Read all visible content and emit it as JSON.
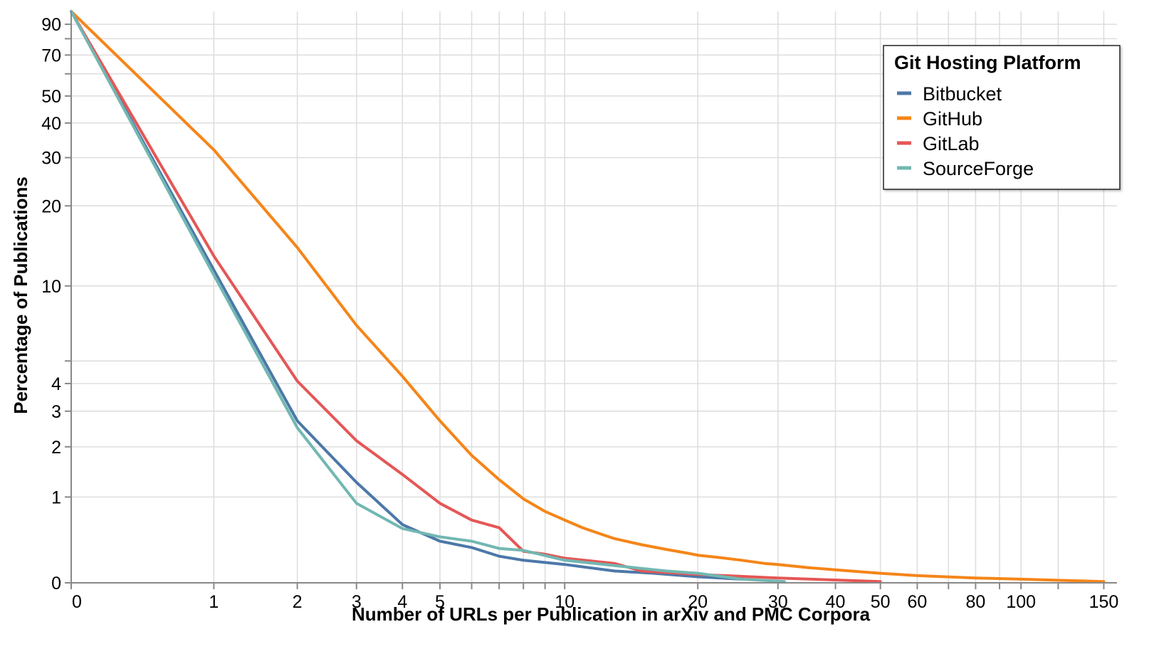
{
  "chart_data": {
    "type": "line",
    "title": "",
    "xlabel": "Number of URLs per Publication in arXiv and PMC Corpora",
    "ylabel": "Percentage of Publications",
    "xscale": "symlog",
    "yscale": "symlog",
    "xlim": [
      0,
      160
    ],
    "ylim": [
      0,
      100
    ],
    "grid": true,
    "x_ticks": [
      0,
      1,
      2,
      3,
      4,
      5,
      10,
      20,
      30,
      40,
      50,
      60,
      80,
      100,
      150
    ],
    "x_minor_ticks": [
      6,
      7,
      8,
      9,
      70,
      90,
      120
    ],
    "y_ticks": [
      0,
      1,
      2,
      3,
      4,
      10,
      20,
      30,
      40,
      50,
      70,
      90
    ],
    "y_minor_ticks": [
      5,
      60,
      80
    ],
    "legend": {
      "title": "Git Hosting Platform",
      "position": "top-right"
    },
    "series": [
      {
        "name": "Bitbucket",
        "color": "#4c78a8",
        "x": [
          0,
          1,
          2,
          3,
          4,
          5,
          6,
          7,
          8,
          10,
          13,
          16,
          20,
          25
        ],
        "y": [
          100,
          11.5,
          2.7,
          1.25,
          0.6,
          0.4,
          0.33,
          0.24,
          0.2,
          0.16,
          0.1,
          0.08,
          0.05,
          0.03
        ]
      },
      {
        "name": "GitHub",
        "color": "#f58518",
        "x": [
          0,
          1,
          2,
          3,
          4,
          5,
          6,
          7,
          8,
          9,
          10,
          11,
          12,
          13,
          15,
          17,
          19,
          20,
          22,
          25,
          28,
          30,
          35,
          40,
          50,
          60,
          80,
          100,
          150
        ],
        "y": [
          100,
          32,
          14,
          7,
          4.3,
          2.7,
          1.8,
          1.3,
          0.97,
          0.78,
          0.66,
          0.56,
          0.49,
          0.43,
          0.36,
          0.31,
          0.27,
          0.25,
          0.23,
          0.2,
          0.17,
          0.16,
          0.13,
          0.11,
          0.08,
          0.06,
          0.04,
          0.03,
          0.01
        ]
      },
      {
        "name": "GitLab",
        "color": "#e45756",
        "x": [
          0,
          1,
          2,
          3,
          4,
          5,
          6,
          7,
          8,
          9,
          10,
          13,
          15,
          20,
          30,
          50
        ],
        "y": [
          100,
          13,
          4.1,
          2.15,
          1.4,
          0.9,
          0.66,
          0.56,
          0.29,
          0.26,
          0.22,
          0.17,
          0.1,
          0.07,
          0.04,
          0.01
        ]
      },
      {
        "name": "SourceForge",
        "color": "#72b7b2",
        "x": [
          0,
          1,
          2,
          3,
          4,
          5,
          6,
          7,
          8,
          10,
          13,
          17,
          20,
          25,
          31
        ],
        "y": [
          100,
          11,
          2.5,
          0.9,
          0.55,
          0.45,
          0.4,
          0.32,
          0.3,
          0.2,
          0.15,
          0.1,
          0.08,
          0.03,
          0.01
        ]
      }
    ]
  }
}
